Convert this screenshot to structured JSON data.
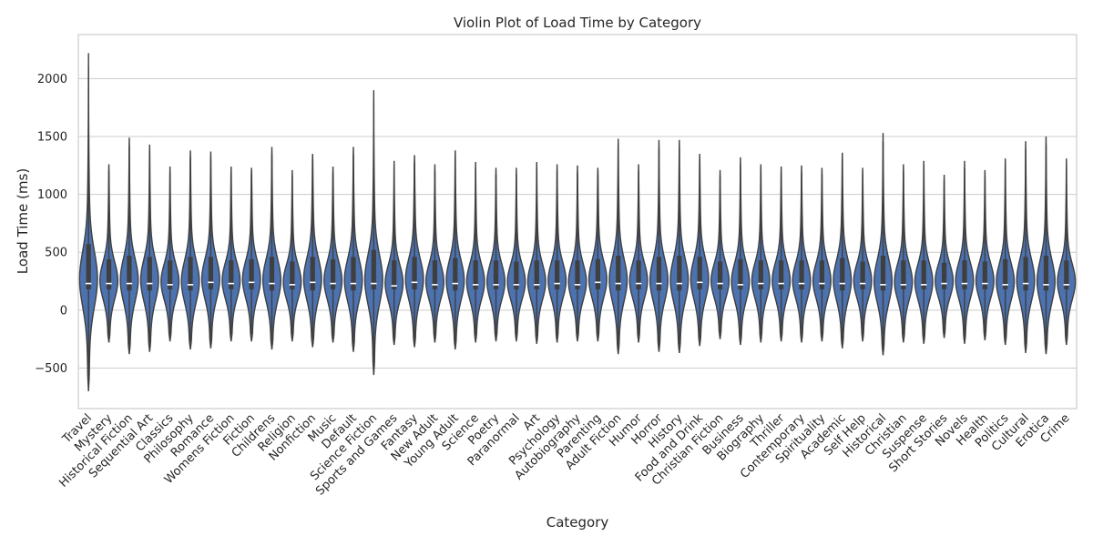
{
  "chart_data": {
    "type": "violin",
    "title": "Violin Plot of Load Time by Category",
    "xlabel": "Category",
    "ylabel": "Load Time (ms)",
    "ylim": [
      -850,
      2380
    ],
    "yticks": [
      -500,
      0,
      500,
      1000,
      1500,
      2000
    ],
    "grid": true,
    "colors": {
      "fill": "#4c72b0",
      "edge": "#3f3f3f",
      "box": "#3f3f3f",
      "grid": "#cccccc",
      "frame": "#cccccc"
    },
    "series": [
      {
        "name": "Travel",
        "min": -700,
        "max": 2220,
        "q1": 180,
        "median": 230,
        "q3": 570
      },
      {
        "name": "Mystery",
        "min": -280,
        "max": 1260,
        "q1": 180,
        "median": 230,
        "q3": 440
      },
      {
        "name": "Historical Fiction",
        "min": -380,
        "max": 1490,
        "q1": 170,
        "median": 230,
        "q3": 470
      },
      {
        "name": "Sequential Art",
        "min": -360,
        "max": 1430,
        "q1": 170,
        "median": 230,
        "q3": 460
      },
      {
        "name": "Classics",
        "min": -270,
        "max": 1240,
        "q1": 180,
        "median": 220,
        "q3": 430
      },
      {
        "name": "Philosophy",
        "min": -340,
        "max": 1380,
        "q1": 170,
        "median": 220,
        "q3": 460
      },
      {
        "name": "Romance",
        "min": -330,
        "max": 1370,
        "q1": 180,
        "median": 240,
        "q3": 460
      },
      {
        "name": "Womens Fiction",
        "min": -270,
        "max": 1240,
        "q1": 180,
        "median": 230,
        "q3": 430
      },
      {
        "name": "Fiction",
        "min": -270,
        "max": 1230,
        "q1": 180,
        "median": 240,
        "q3": 440
      },
      {
        "name": "Childrens",
        "min": -340,
        "max": 1410,
        "q1": 170,
        "median": 230,
        "q3": 460
      },
      {
        "name": "Religion",
        "min": -270,
        "max": 1210,
        "q1": 180,
        "median": 220,
        "q3": 420
      },
      {
        "name": "Nonfiction",
        "min": -320,
        "max": 1350,
        "q1": 170,
        "median": 240,
        "q3": 460
      },
      {
        "name": "Music",
        "min": -280,
        "max": 1240,
        "q1": 180,
        "median": 230,
        "q3": 440
      },
      {
        "name": "Default",
        "min": -360,
        "max": 1410,
        "q1": 170,
        "median": 230,
        "q3": 460
      },
      {
        "name": "Science Fiction",
        "min": -560,
        "max": 1900,
        "q1": 180,
        "median": 230,
        "q3": 520
      },
      {
        "name": "Sports and Games",
        "min": -300,
        "max": 1290,
        "q1": 180,
        "median": 210,
        "q3": 430
      },
      {
        "name": "Fantasy",
        "min": -320,
        "max": 1340,
        "q1": 180,
        "median": 240,
        "q3": 460
      },
      {
        "name": "New Adult",
        "min": -280,
        "max": 1260,
        "q1": 180,
        "median": 220,
        "q3": 430
      },
      {
        "name": "Young Adult",
        "min": -340,
        "max": 1380,
        "q1": 170,
        "median": 230,
        "q3": 450
      },
      {
        "name": "Science",
        "min": -280,
        "max": 1280,
        "q1": 180,
        "median": 220,
        "q3": 430
      },
      {
        "name": "Poetry",
        "min": -270,
        "max": 1230,
        "q1": 180,
        "median": 220,
        "q3": 430
      },
      {
        "name": "Paranormal",
        "min": -270,
        "max": 1230,
        "q1": 180,
        "median": 220,
        "q3": 420
      },
      {
        "name": "Art",
        "min": -290,
        "max": 1280,
        "q1": 180,
        "median": 220,
        "q3": 430
      },
      {
        "name": "Psychology",
        "min": -280,
        "max": 1260,
        "q1": 180,
        "median": 230,
        "q3": 430
      },
      {
        "name": "Autobiography",
        "min": -270,
        "max": 1250,
        "q1": 180,
        "median": 220,
        "q3": 430
      },
      {
        "name": "Parenting",
        "min": -270,
        "max": 1230,
        "q1": 180,
        "median": 240,
        "q3": 440
      },
      {
        "name": "Adult Fiction",
        "min": -380,
        "max": 1480,
        "q1": 170,
        "median": 230,
        "q3": 470
      },
      {
        "name": "Humor",
        "min": -280,
        "max": 1260,
        "q1": 180,
        "median": 230,
        "q3": 430
      },
      {
        "name": "Horror",
        "min": -360,
        "max": 1470,
        "q1": 170,
        "median": 230,
        "q3": 460
      },
      {
        "name": "History",
        "min": -370,
        "max": 1470,
        "q1": 170,
        "median": 230,
        "q3": 470
      },
      {
        "name": "Food and Drink",
        "min": -310,
        "max": 1350,
        "q1": 180,
        "median": 240,
        "q3": 460
      },
      {
        "name": "Christian Fiction",
        "min": -250,
        "max": 1210,
        "q1": 180,
        "median": 230,
        "q3": 420
      },
      {
        "name": "Business",
        "min": -300,
        "max": 1320,
        "q1": 180,
        "median": 220,
        "q3": 440
      },
      {
        "name": "Biography",
        "min": -280,
        "max": 1260,
        "q1": 180,
        "median": 230,
        "q3": 430
      },
      {
        "name": "Thriller",
        "min": -270,
        "max": 1240,
        "q1": 180,
        "median": 230,
        "q3": 430
      },
      {
        "name": "Contemporary",
        "min": -280,
        "max": 1250,
        "q1": 180,
        "median": 230,
        "q3": 430
      },
      {
        "name": "Spirituality",
        "min": -270,
        "max": 1230,
        "q1": 180,
        "median": 230,
        "q3": 430
      },
      {
        "name": "Academic",
        "min": -330,
        "max": 1360,
        "q1": 170,
        "median": 230,
        "q3": 450
      },
      {
        "name": "Self Help",
        "min": -270,
        "max": 1230,
        "q1": 180,
        "median": 230,
        "q3": 420
      },
      {
        "name": "Historical",
        "min": -390,
        "max": 1530,
        "q1": 170,
        "median": 220,
        "q3": 470
      },
      {
        "name": "Christian",
        "min": -280,
        "max": 1260,
        "q1": 180,
        "median": 220,
        "q3": 430
      },
      {
        "name": "Suspense",
        "min": -290,
        "max": 1290,
        "q1": 180,
        "median": 220,
        "q3": 430
      },
      {
        "name": "Short Stories",
        "min": -240,
        "max": 1170,
        "q1": 180,
        "median": 230,
        "q3": 410
      },
      {
        "name": "Novels",
        "min": -290,
        "max": 1290,
        "q1": 180,
        "median": 230,
        "q3": 430
      },
      {
        "name": "Health",
        "min": -260,
        "max": 1210,
        "q1": 180,
        "median": 230,
        "q3": 420
      },
      {
        "name": "Politics",
        "min": -300,
        "max": 1310,
        "q1": 180,
        "median": 220,
        "q3": 440
      },
      {
        "name": "Cultural",
        "min": -370,
        "max": 1460,
        "q1": 170,
        "median": 230,
        "q3": 460
      },
      {
        "name": "Erotica",
        "min": -380,
        "max": 1500,
        "q1": 170,
        "median": 220,
        "q3": 470
      },
      {
        "name": "Crime",
        "min": -300,
        "max": 1310,
        "q1": 180,
        "median": 220,
        "q3": 430
      }
    ]
  }
}
